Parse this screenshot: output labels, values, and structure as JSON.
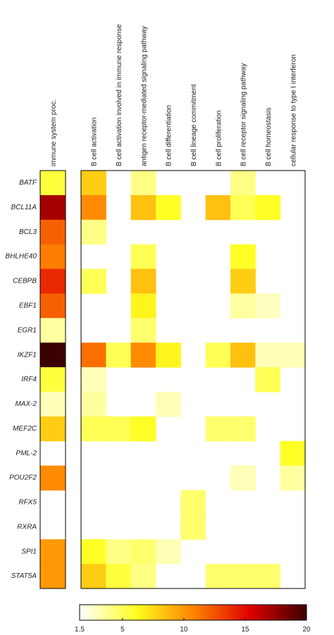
{
  "chart_data": {
    "type": "heatmap",
    "rows": [
      "BATF",
      "BCL11A",
      "BCL3",
      "BHLHE40",
      "CEBPB",
      "EBF1",
      "EGR1",
      "IKZF1",
      "IRF4",
      "MAX-2",
      "MEF2C",
      "PML-2",
      "POU2F2",
      "RFX5",
      "RXRA",
      "SPI1",
      "STAT5A"
    ],
    "side_column": {
      "name": "immune system proc.",
      "values": [
        5.5,
        17,
        12,
        11,
        14,
        12,
        3.5,
        20,
        5.5,
        3,
        8,
        null,
        10.5,
        null,
        null,
        10,
        10
      ]
    },
    "columns": [
      "B cell activation",
      "B cell activation involved in immune response",
      "antigen receptor-mediated signaling pathway",
      "B cell differentiation",
      "B cell lineage commitment",
      "B cell proliferation",
      "B cell receptor signaling pathway",
      "B cell homeostasis",
      "cellular response to type I interferon"
    ],
    "values": [
      [
        8,
        null,
        4,
        null,
        null,
        null,
        4,
        null,
        null
      ],
      [
        10.5,
        null,
        8.5,
        6,
        null,
        8.5,
        5,
        6,
        null
      ],
      [
        4,
        null,
        null,
        null,
        null,
        null,
        null,
        null,
        null
      ],
      [
        null,
        null,
        5,
        null,
        null,
        null,
        6,
        null,
        null
      ],
      [
        5,
        null,
        8.5,
        null,
        null,
        null,
        8,
        null,
        null
      ],
      [
        null,
        null,
        6.5,
        null,
        null,
        null,
        3.5,
        2.8,
        null
      ],
      [
        null,
        null,
        4.5,
        null,
        null,
        null,
        null,
        null,
        null
      ],
      [
        11.5,
        5,
        10.5,
        6.5,
        null,
        5,
        8.5,
        3,
        3
      ],
      [
        3,
        null,
        null,
        null,
        null,
        null,
        null,
        5,
        null
      ],
      [
        3.5,
        null,
        null,
        3,
        null,
        null,
        null,
        null,
        null
      ],
      [
        5,
        5,
        6,
        null,
        null,
        4.5,
        4.5,
        null,
        null
      ],
      [
        null,
        null,
        null,
        null,
        null,
        null,
        null,
        null,
        6
      ],
      [
        null,
        null,
        null,
        null,
        null,
        null,
        3,
        null,
        3.5
      ],
      [
        null,
        null,
        null,
        null,
        4.5,
        null,
        null,
        null,
        null
      ],
      [
        null,
        null,
        null,
        null,
        4.5,
        null,
        null,
        null,
        null
      ],
      [
        6,
        4,
        4.5,
        3,
        null,
        null,
        null,
        null,
        null
      ],
      [
        8,
        5.5,
        4,
        null,
        null,
        4.5,
        4.5,
        4.5,
        null
      ]
    ],
    "clim": [
      1.5,
      20
    ],
    "cticks": [
      1.5,
      5,
      10,
      15,
      20
    ],
    "colormap": [
      "#ffffff",
      "#ffff20",
      "#ff8400",
      "#e00000",
      "#3c0000"
    ]
  }
}
